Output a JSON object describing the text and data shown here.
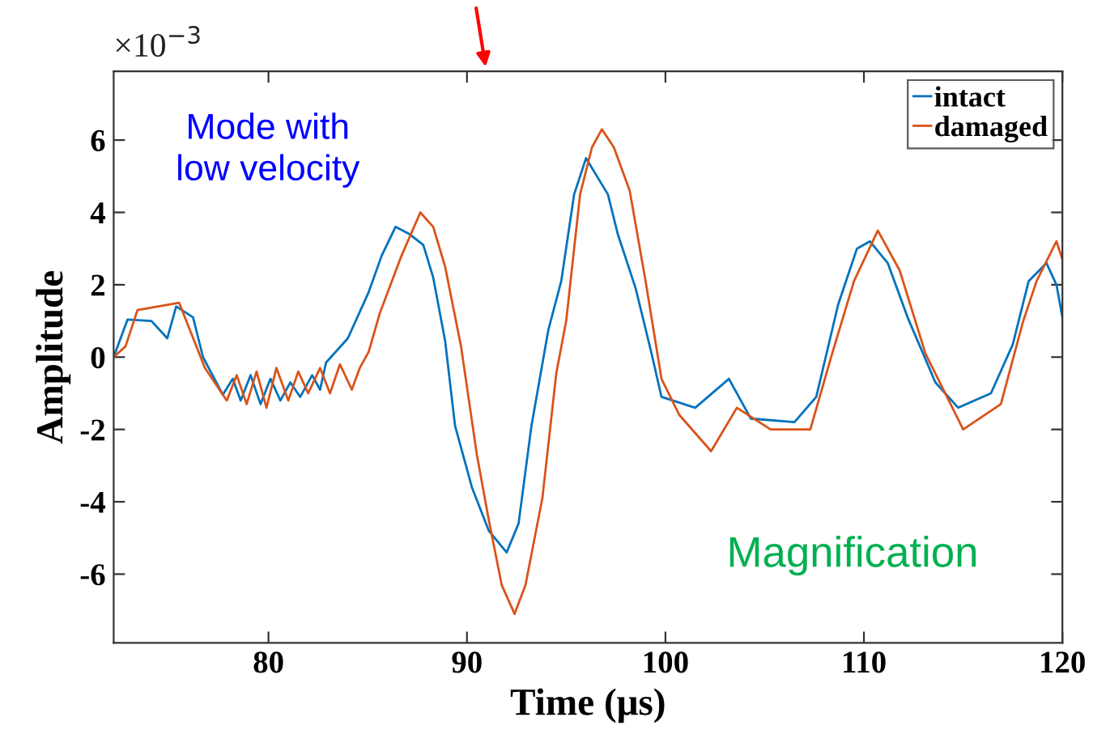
{
  "chart_data": {
    "type": "line",
    "xlabel": "Time (μs)",
    "ylabel": "Amplitude",
    "annotations": [
      "×10$^{−3}$",
      "Mode with\nlow velocity",
      "Magnification"
    ],
    "xlim": [
      72.2,
      120
    ],
    "xticks": [
      80,
      90,
      100,
      110,
      120
    ],
    "ylim": [
      -7.9,
      7.9
    ],
    "yticks": [
      -6,
      -4,
      -2,
      0,
      2,
      4,
      6
    ],
    "grid": false,
    "legend": "top right",
    "line_style": "solid",
    "marker": "none",
    "series": [
      {
        "name": "intact",
        "color": "#0072bd",
        "x": [
          72.2,
          72.9,
          74.1,
          74.9,
          75.35,
          76.2,
          76.7,
          77.7,
          78.2,
          78.6,
          79.1,
          79.6,
          80.1,
          80.6,
          81.1,
          81.6,
          82.2,
          82.6,
          82.9,
          84.0,
          85.05,
          85.7,
          86.4,
          87.1,
          87.8,
          88.3,
          88.9,
          89.4,
          90.25,
          91.1,
          92.0,
          92.6,
          93.25,
          94.1,
          94.75,
          95.4,
          96.0,
          97.1,
          97.6,
          98.5,
          99.3,
          99.8,
          101.5,
          103.2,
          104.3,
          106.5,
          107.6,
          108.7,
          109.65,
          110.3,
          111.2,
          112.2,
          113.6,
          114.75,
          116.4,
          117.5,
          118.3,
          119.2,
          119.7,
          120
        ],
        "values": [
          0,
          1.04,
          1.0,
          0.52,
          1.4,
          1.1,
          0,
          -1.04,
          -0.6,
          -1.2,
          -0.5,
          -1.3,
          -0.6,
          -1.2,
          -0.7,
          -1.1,
          -0.5,
          -0.9,
          -0.15,
          0.52,
          1.8,
          2.8,
          3.6,
          3.4,
          3.1,
          2.2,
          0.45,
          -1.9,
          -3.6,
          -4.8,
          -5.4,
          -4.6,
          -1.9,
          0.75,
          2.1,
          4.5,
          5.5,
          4.5,
          3.4,
          1.9,
          0.1,
          -1.1,
          -1.4,
          -0.6,
          -1.7,
          -1.8,
          -1.1,
          1.45,
          3.0,
          3.2,
          2.6,
          1.1,
          -0.7,
          -1.4,
          -1.0,
          0.35,
          2.1,
          2.6,
          2.0,
          1.1
        ]
      },
      {
        "name": "damaged",
        "color": "#d95319",
        "x": [
          72.2,
          72.8,
          73.4,
          75.5,
          76.8,
          77.9,
          78.4,
          78.9,
          79.4,
          79.9,
          80.4,
          81.0,
          81.5,
          82.0,
          82.6,
          83.1,
          83.6,
          84.2,
          84.6,
          85.05,
          85.6,
          86.7,
          87.65,
          88.3,
          88.9,
          89.7,
          90.5,
          91.1,
          91.75,
          92.4,
          92.95,
          93.8,
          94.5,
          95.0,
          95.7,
          96.3,
          96.8,
          97.4,
          98.2,
          99.0,
          99.8,
          100.7,
          102.3,
          103.6,
          105.3,
          107.3,
          108.4,
          109.5,
          110.7,
          111.8,
          113.1,
          115.0,
          116.9,
          118.0,
          118.7,
          119.7,
          120
        ],
        "values": [
          0,
          0.3,
          1.3,
          1.5,
          -0.3,
          -1.2,
          -0.5,
          -1.3,
          -0.4,
          -1.4,
          -0.3,
          -1.2,
          -0.4,
          -1.0,
          -0.3,
          -1.0,
          -0.2,
          -0.9,
          -0.3,
          0.15,
          1.2,
          2.8,
          4.0,
          3.6,
          2.5,
          0.3,
          -2.7,
          -4.5,
          -6.3,
          -7.1,
          -6.3,
          -3.9,
          -0.45,
          1.0,
          4.5,
          5.8,
          6.3,
          5.8,
          4.6,
          2.1,
          -0.6,
          -1.6,
          -2.6,
          -1.4,
          -2.0,
          -2.0,
          0.1,
          2.1,
          3.5,
          2.4,
          0.1,
          -2.0,
          -1.3,
          0.95,
          2.1,
          3.2,
          2.7
        ]
      }
    ]
  }
}
